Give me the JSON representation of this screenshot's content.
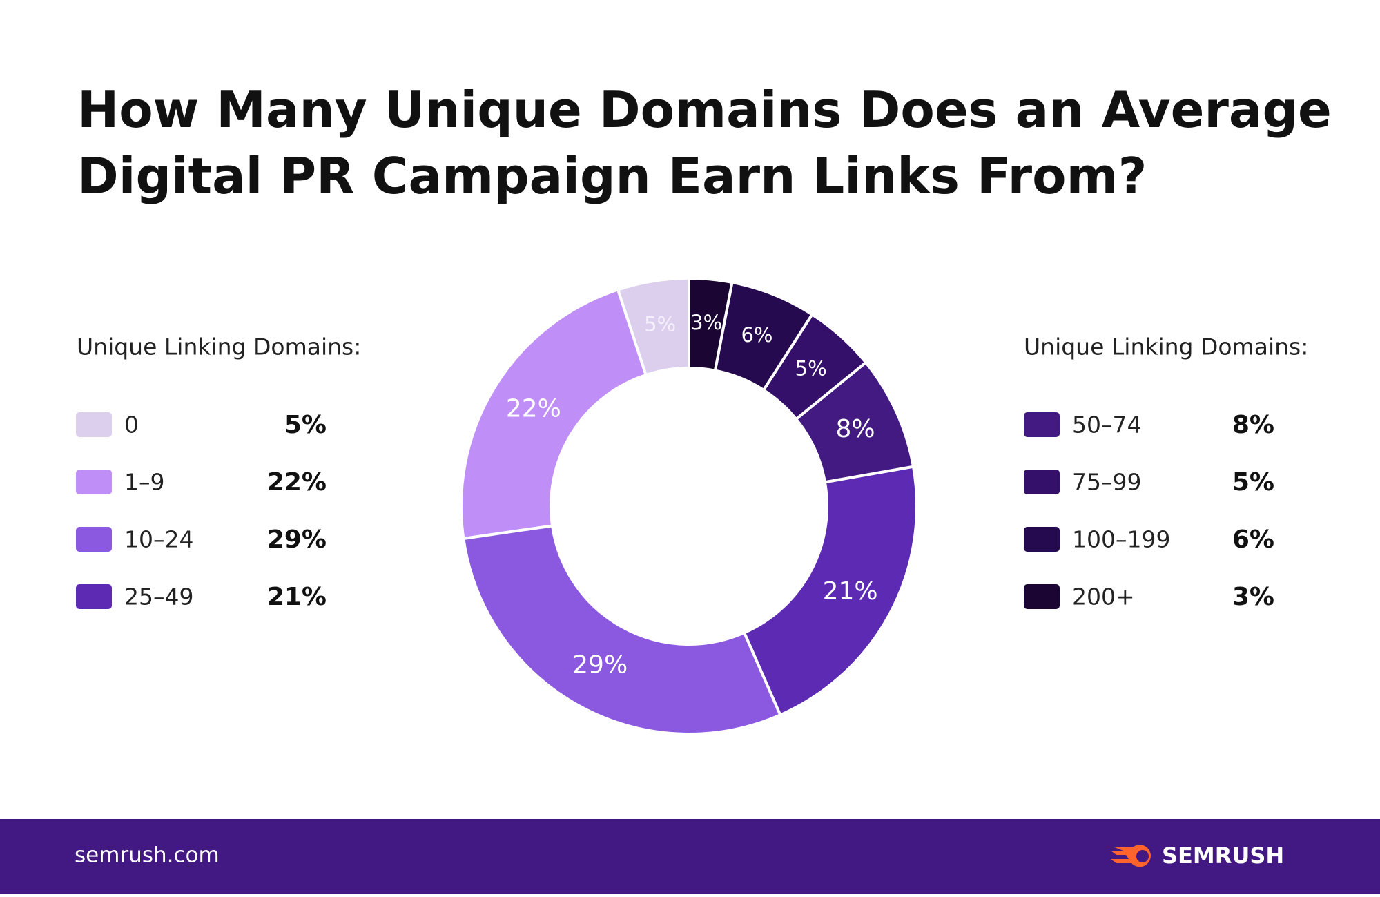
{
  "chart_data": {
    "type": "pie",
    "title": "How Many Unique Domains Does an Average Digital PR Campaign Earn Links From?",
    "legend_title": "Unique Linking Domains:",
    "categories": [
      "0",
      "1–9",
      "10–24",
      "25–49",
      "50–74",
      "75–99",
      "100–199",
      "200+"
    ],
    "values": [
      5,
      22,
      29,
      21,
      8,
      5,
      6,
      3
    ],
    "value_labels": [
      "5%",
      "22%",
      "29%",
      "21%",
      "8%",
      "5%",
      "6%",
      "3%"
    ],
    "colors": [
      "#dccfee",
      "#bf8ff7",
      "#8b58e0",
      "#5d2bb3",
      "#421a82",
      "#34106a",
      "#260a4f",
      "#1a0533"
    ],
    "donut": true
  },
  "footer": {
    "site": "semrush.com",
    "brand": "SEMRUSH"
  }
}
